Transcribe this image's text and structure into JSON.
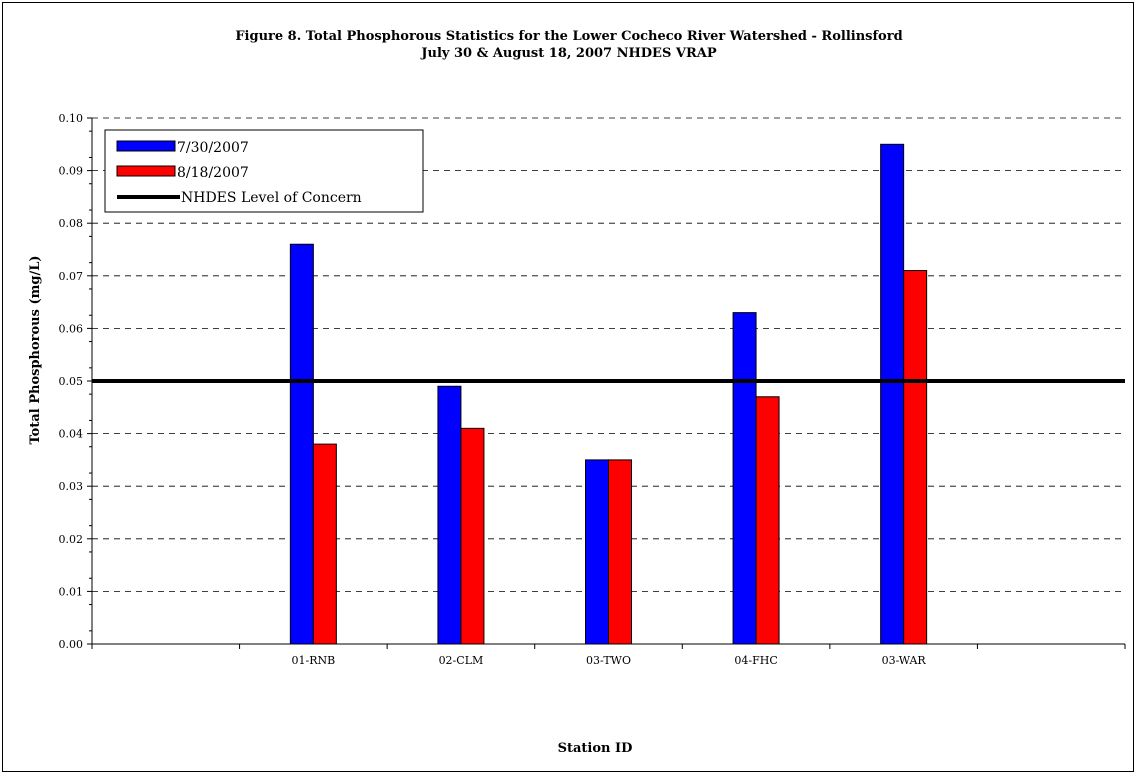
{
  "chart_data": {
    "type": "bar",
    "title_line1": "Figure 8. Total Phosphorous Statistics for the Lower Cocheco River Watershed - Rollinsford",
    "title_line2": "July 30 & August 18, 2007 NHDES VRAP",
    "xlabel": "Station ID",
    "ylabel": "Total Phosphorous (mg/L)",
    "categories": [
      "01-RNB",
      "02-CLM",
      "03-TWO",
      "04-FHC",
      "03-WAR"
    ],
    "series": [
      {
        "name": "7/30/2007",
        "color": "#0000ff",
        "values": [
          0.076,
          0.049,
          0.035,
          0.063,
          0.095
        ]
      },
      {
        "name": "8/18/2007",
        "color": "#ff0000",
        "values": [
          0.038,
          0.041,
          0.035,
          0.047,
          0.071
        ]
      }
    ],
    "reference_line": {
      "name": "NHDES Level of Concern",
      "value": 0.05,
      "color": "#000000"
    },
    "ylim": [
      0,
      0.1
    ],
    "yticks": [
      "0.00",
      "0.01",
      "0.02",
      "0.03",
      "0.04",
      "0.05",
      "0.06",
      "0.07",
      "0.08",
      "0.09",
      "0.10"
    ],
    "grid": "dashed horizontal",
    "legend_position": "top-left"
  }
}
